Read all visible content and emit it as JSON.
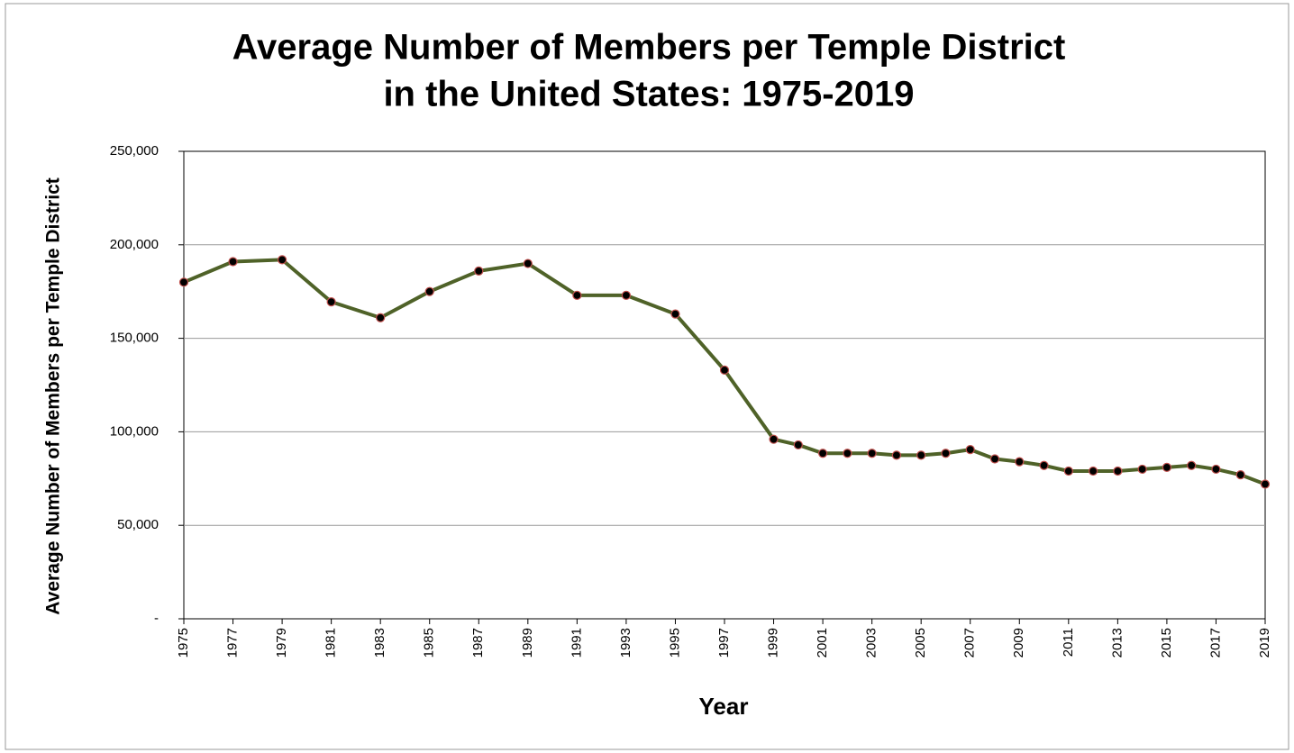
{
  "chart_data": {
    "type": "line",
    "title": [
      "Average Number of Members per Temple District",
      "in the United States: 1975-2019"
    ],
    "x_label": "Year",
    "y_label": "Average Number of Members per Temple District",
    "x": [
      1975,
      1977,
      1979,
      1981,
      1983,
      1985,
      1987,
      1989,
      1991,
      1993,
      1995,
      1997,
      1999,
      2000,
      2001,
      2002,
      2003,
      2004,
      2005,
      2006,
      2007,
      2008,
      2009,
      2010,
      2011,
      2012,
      2013,
      2014,
      2015,
      2016,
      2017,
      2018,
      2019
    ],
    "values": [
      180000,
      191000,
      192000,
      169500,
      161000,
      175000,
      186000,
      190000,
      173000,
      173000,
      163000,
      133000,
      96000,
      93000,
      88500,
      88500,
      88500,
      87500,
      87500,
      88500,
      90500,
      85500,
      84000,
      82000,
      79000,
      79000,
      79000,
      80000,
      81000,
      82000,
      80000,
      77000,
      72000
    ],
    "color": "#4f6228",
    "marker_color": "#000000",
    "marker_edge": "#c0504d",
    "xlim": [
      1975,
      2019
    ],
    "xticks": [
      1975,
      1977,
      1979,
      1981,
      1983,
      1985,
      1987,
      1989,
      1991,
      1993,
      1995,
      1997,
      1999,
      2001,
      2003,
      2005,
      2007,
      2009,
      2011,
      2013,
      2015,
      2017,
      2019
    ],
    "ylim": [
      0,
      250000
    ],
    "yticks": [
      {
        "value": 0,
        "label": "-"
      },
      {
        "value": 50000,
        "label": "50,000"
      },
      {
        "value": 100000,
        "label": "100,000"
      },
      {
        "value": 150000,
        "label": "150,000"
      },
      {
        "value": 200000,
        "label": "200,000"
      },
      {
        "value": 250000,
        "label": "250,000"
      }
    ],
    "grid": true
  }
}
